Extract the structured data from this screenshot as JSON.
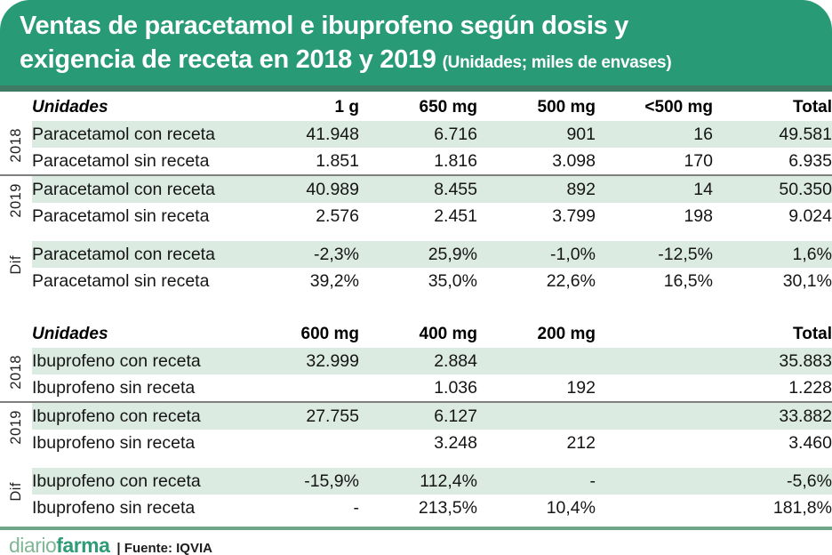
{
  "header": {
    "line1": "Ventas de paracetamol e ibuprofeno según dosis y",
    "line2": "exigencia de receta en 2018 y 2019",
    "note": "(Unidades; miles de envases)"
  },
  "colors": {
    "header_green": "#299A76",
    "header_stripe": "#3F7A64",
    "row_shade": "#DCEBE2",
    "negative_red": "#C21E38",
    "separator_gray": "#7F7F7F",
    "footer_rule_green": "#6FA688",
    "logo_diario_green": "#7FB795",
    "logo_farma_green": "#2F9B77"
  },
  "footer": {
    "logo_diario": "diario",
    "logo_farma": "farma",
    "source": "| Fuente: IQVIA"
  },
  "chart_data": {
    "type": "table",
    "title": "Ventas de paracetamol e ibuprofeno según dosis y exigencia de receta en 2018 y 2019",
    "units_note": "Unidades; miles de envases",
    "source": "Fuente: IQVIA",
    "tables": [
      {
        "name": "paracetamol",
        "columns": [
          "Unidades",
          "1 g",
          "650 mg",
          "500 mg",
          "<500 mg",
          "Total"
        ],
        "groups": [
          {
            "label": "2018",
            "separator_top": false,
            "gap_before": false,
            "rows": [
              {
                "label": "Paracetamol con receta",
                "shaded": true,
                "cells": [
                  {
                    "v": "41.948"
                  },
                  {
                    "v": "6.716"
                  },
                  {
                    "v": "901"
                  },
                  {
                    "v": "16"
                  },
                  {
                    "v": "49.581"
                  }
                ]
              },
              {
                "label": "Paracetamol sin receta",
                "shaded": false,
                "cells": [
                  {
                    "v": "1.851"
                  },
                  {
                    "v": "1.816"
                  },
                  {
                    "v": "3.098"
                  },
                  {
                    "v": "170"
                  },
                  {
                    "v": "6.935"
                  }
                ]
              }
            ]
          },
          {
            "label": "2019",
            "separator_top": true,
            "gap_before": false,
            "rows": [
              {
                "label": "Paracetamol con receta",
                "shaded": true,
                "cells": [
                  {
                    "v": "40.989"
                  },
                  {
                    "v": "8.455"
                  },
                  {
                    "v": "892"
                  },
                  {
                    "v": "14"
                  },
                  {
                    "v": "50.350"
                  }
                ]
              },
              {
                "label": "Paracetamol sin receta",
                "shaded": false,
                "cells": [
                  {
                    "v": "2.576"
                  },
                  {
                    "v": "2.451"
                  },
                  {
                    "v": "3.799"
                  },
                  {
                    "v": "198"
                  },
                  {
                    "v": "9.024"
                  }
                ]
              }
            ]
          },
          {
            "label": "Dif",
            "separator_top": false,
            "gap_before": true,
            "rows": [
              {
                "label": "Paracetamol con receta",
                "shaded": true,
                "cells": [
                  {
                    "v": "-2,3%",
                    "neg": true
                  },
                  {
                    "v": "25,9%"
                  },
                  {
                    "v": "-1,0%",
                    "neg": true
                  },
                  {
                    "v": "-12,5%",
                    "neg": true
                  },
                  {
                    "v": "1,6%"
                  }
                ]
              },
              {
                "label": "Paracetamol sin receta",
                "shaded": false,
                "cells": [
                  {
                    "v": "39,2%"
                  },
                  {
                    "v": "35,0%"
                  },
                  {
                    "v": "22,6%"
                  },
                  {
                    "v": "16,5%"
                  },
                  {
                    "v": "30,1%"
                  }
                ]
              }
            ]
          }
        ]
      },
      {
        "name": "ibuprofeno",
        "columns": [
          "Unidades",
          "600 mg",
          "400 mg",
          "200 mg",
          "",
          "Total"
        ],
        "groups": [
          {
            "label": "2018",
            "separator_top": false,
            "gap_before": false,
            "rows": [
              {
                "label": "Ibuprofeno con receta",
                "shaded": true,
                "cells": [
                  {
                    "v": "32.999"
                  },
                  {
                    "v": "2.884"
                  },
                  {
                    "v": ""
                  },
                  {
                    "v": ""
                  },
                  {
                    "v": "35.883"
                  }
                ]
              },
              {
                "label": "Ibuprofeno sin receta",
                "shaded": false,
                "cells": [
                  {
                    "v": ""
                  },
                  {
                    "v": "1.036"
                  },
                  {
                    "v": "192"
                  },
                  {
                    "v": ""
                  },
                  {
                    "v": "1.228"
                  }
                ]
              }
            ]
          },
          {
            "label": "2019",
            "separator_top": true,
            "gap_before": false,
            "rows": [
              {
                "label": "Ibuprofeno con receta",
                "shaded": true,
                "cells": [
                  {
                    "v": "27.755"
                  },
                  {
                    "v": "6.127"
                  },
                  {
                    "v": ""
                  },
                  {
                    "v": ""
                  },
                  {
                    "v": "33.882"
                  }
                ]
              },
              {
                "label": "Ibuprofeno sin receta",
                "shaded": false,
                "cells": [
                  {
                    "v": ""
                  },
                  {
                    "v": "3.248"
                  },
                  {
                    "v": "212"
                  },
                  {
                    "v": ""
                  },
                  {
                    "v": "3.460"
                  }
                ]
              }
            ]
          },
          {
            "label": "Dif",
            "separator_top": false,
            "gap_before": true,
            "rows": [
              {
                "label": "Ibuprofeno con receta",
                "shaded": true,
                "cells": [
                  {
                    "v": "-15,9%",
                    "neg": true
                  },
                  {
                    "v": "112,4%"
                  },
                  {
                    "v": "-"
                  },
                  {
                    "v": ""
                  },
                  {
                    "v": "-5,6%",
                    "neg": true
                  }
                ]
              },
              {
                "label": "Ibuprofeno sin receta",
                "shaded": false,
                "cells": [
                  {
                    "v": "-"
                  },
                  {
                    "v": "213,5%"
                  },
                  {
                    "v": "10,4%"
                  },
                  {
                    "v": ""
                  },
                  {
                    "v": "181,8%"
                  }
                ]
              }
            ]
          }
        ]
      }
    ]
  }
}
